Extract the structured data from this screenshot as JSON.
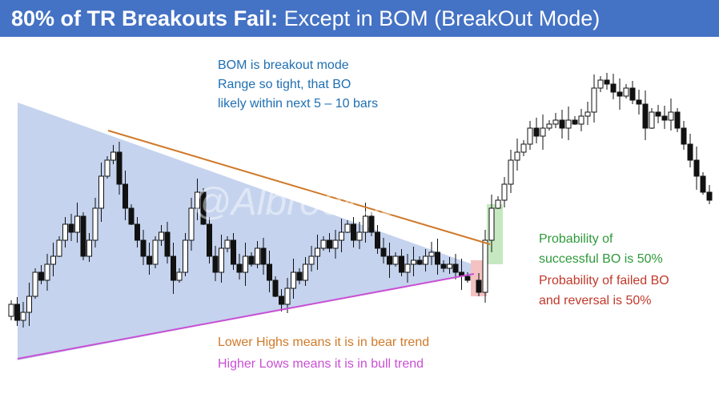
{
  "header": {
    "title_bold": "80% of TR Breakouts Fail:",
    "title_rest": "Except in BOM (BreakOut Mode)"
  },
  "watermark": "@Albrooksall",
  "notes": {
    "bom": [
      "BOM is breakout mode",
      "Range so tight, that BO",
      "likely within next 5 – 10 bars"
    ],
    "success": [
      "Probability of",
      "successful BO is 50%"
    ],
    "fail": [
      "Probability of failed BO",
      "and reversal is 50%"
    ],
    "lower_highs": "Lower Highs means it is in bear trend",
    "higher_lows": "Higher Lows means it is in bull trend"
  }
}
